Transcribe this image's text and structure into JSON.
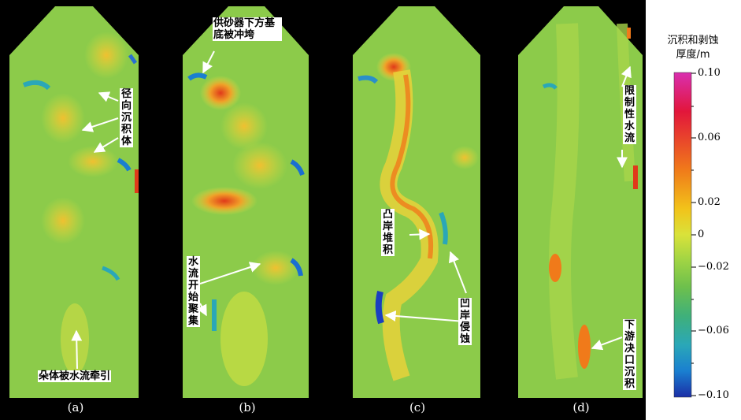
{
  "panels": [
    {
      "label": "(a)",
      "annotations": [
        "径向沉积体",
        "朵体被水流牵引"
      ]
    },
    {
      "label": "(b)",
      "annotations": [
        "供砂器下方基底被冲垮",
        "水流开始聚集"
      ]
    },
    {
      "label": "(c)",
      "annotations": [
        "凸岸堆积",
        "凹岸侵蚀"
      ]
    },
    {
      "label": "(d)",
      "annotations": [
        "限制性水流",
        "下游决口沉积"
      ]
    }
  ],
  "colorbar": {
    "title_line1": "沉积和剥蚀",
    "title_line2": "厚度/m",
    "ticks": [
      "0.10",
      "0.06",
      "0.02",
      "0",
      "−0.02",
      "−0.06",
      "−0.10"
    ],
    "colors": [
      "#d92fb0",
      "#e2163b",
      "#f07a1a",
      "#f2c31a",
      "#e8ea3a",
      "#a9d842",
      "#72c24a",
      "#40b06b",
      "#2bb0a8",
      "#1a8fd0",
      "#1b2ea6"
    ]
  },
  "background_color": "#000000",
  "base_surface_color": "#8ccb4a"
}
